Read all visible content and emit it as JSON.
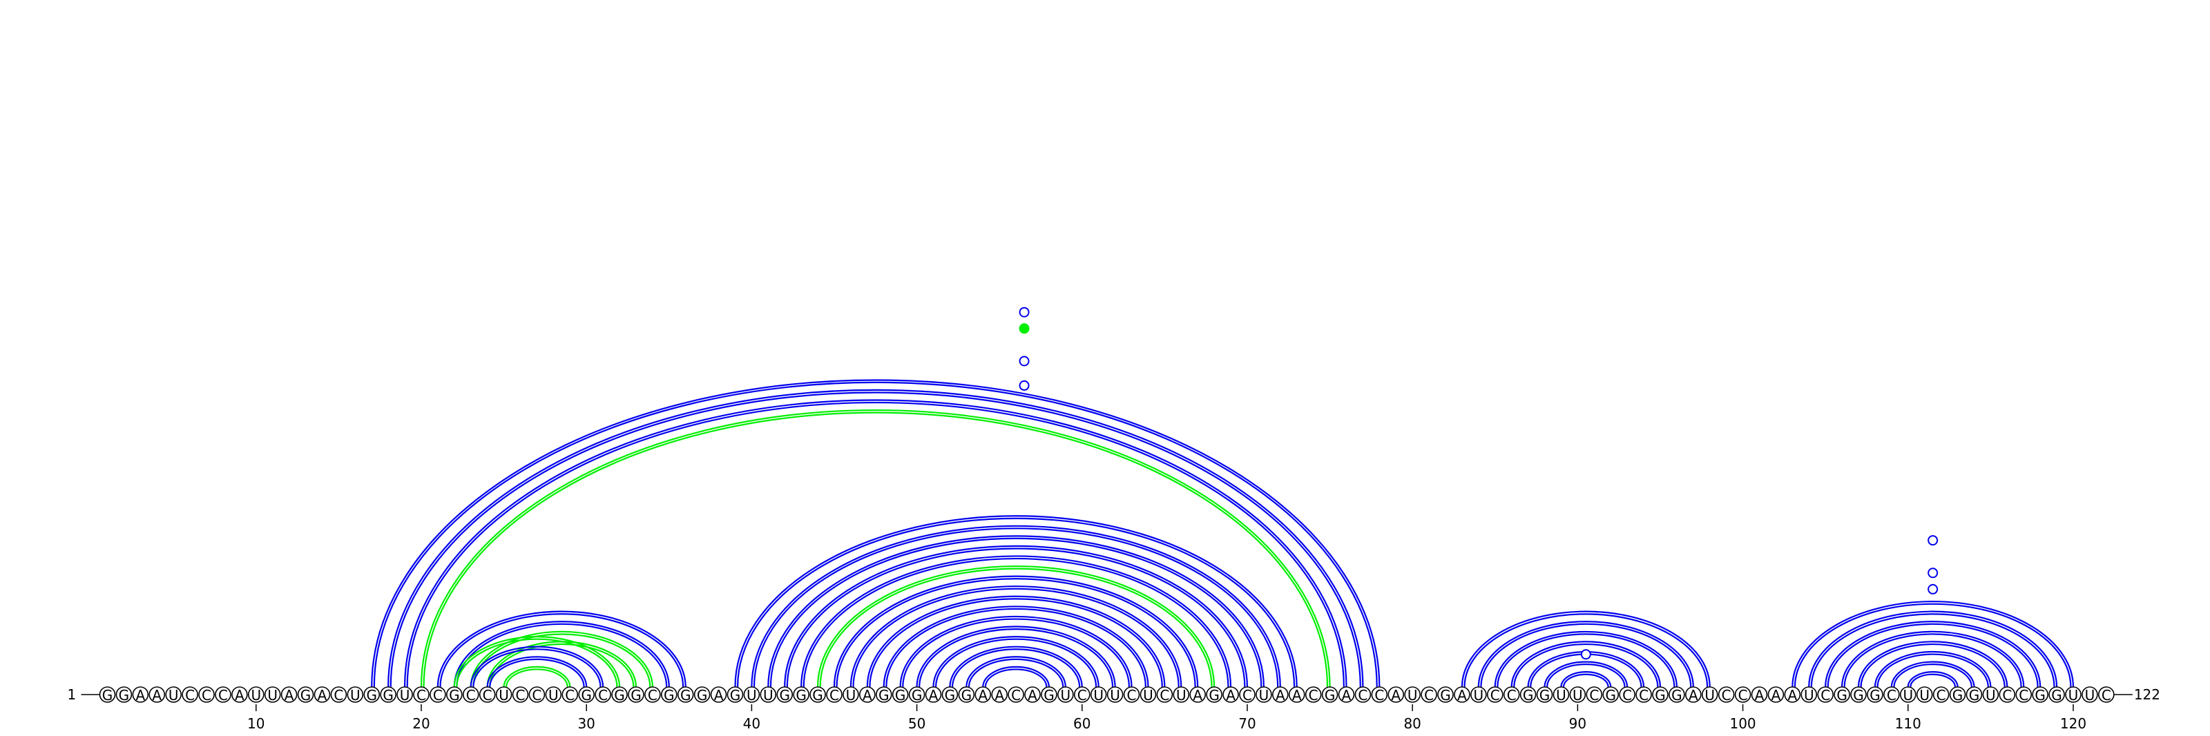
{
  "sequence": {
    "start_label": "1",
    "end_label": "122",
    "residues": "GGAAUCCCAUUAGACUGGUCCGCCUCCUCGCGGCGGGAGUUGGGCUAGGGAGGAACAGUCUUCUCUAGACUAACGACCAUCGAUCCGGUUCGCCGGAUCCAAAUCGGGCUUCGGUCCGGUUC",
    "tick_positions": [
      10,
      20,
      30,
      40,
      50,
      60,
      70,
      80,
      90,
      100,
      110,
      120
    ]
  },
  "colors": {
    "primary": "#0000ee",
    "secondary": "#00ee00",
    "outline": "#000000"
  },
  "chart_data": {
    "type": "arc",
    "x_range": [
      1,
      122
    ],
    "arcs": [
      {
        "i": 17,
        "j": 78,
        "color": "primary"
      },
      {
        "i": 18,
        "j": 77,
        "color": "primary"
      },
      {
        "i": 19,
        "j": 76,
        "color": "primary"
      },
      {
        "i": 20,
        "j": 75,
        "color": "secondary"
      },
      {
        "i": 21,
        "j": 36,
        "color": "primary"
      },
      {
        "i": 22,
        "j": 35,
        "color": "primary"
      },
      {
        "i": 23,
        "j": 34,
        "color": "secondary"
      },
      {
        "i": 24,
        "j": 33,
        "color": "secondary"
      },
      {
        "i": 22,
        "j": 32,
        "color": "secondary"
      },
      {
        "i": 23,
        "j": 31,
        "color": "primary"
      },
      {
        "i": 24,
        "j": 30,
        "color": "primary"
      },
      {
        "i": 25,
        "j": 29,
        "color": "secondary"
      },
      {
        "i": 39,
        "j": 73,
        "color": "primary"
      },
      {
        "i": 40,
        "j": 72,
        "color": "primary"
      },
      {
        "i": 41,
        "j": 71,
        "color": "primary"
      },
      {
        "i": 42,
        "j": 70,
        "color": "primary"
      },
      {
        "i": 43,
        "j": 69,
        "color": "primary"
      },
      {
        "i": 44,
        "j": 68,
        "color": "secondary"
      },
      {
        "i": 45,
        "j": 67,
        "color": "primary"
      },
      {
        "i": 46,
        "j": 66,
        "color": "primary"
      },
      {
        "i": 47,
        "j": 65,
        "color": "primary"
      },
      {
        "i": 48,
        "j": 64,
        "color": "primary"
      },
      {
        "i": 49,
        "j": 63,
        "color": "primary"
      },
      {
        "i": 50,
        "j": 62,
        "color": "primary"
      },
      {
        "i": 51,
        "j": 61,
        "color": "primary"
      },
      {
        "i": 52,
        "j": 60,
        "color": "primary"
      },
      {
        "i": 53,
        "j": 59,
        "color": "primary"
      },
      {
        "i": 54,
        "j": 58,
        "color": "primary"
      },
      {
        "i": 83,
        "j": 98,
        "color": "primary"
      },
      {
        "i": 84,
        "j": 97,
        "color": "primary"
      },
      {
        "i": 85,
        "j": 96,
        "color": "primary"
      },
      {
        "i": 86,
        "j": 95,
        "color": "primary"
      },
      {
        "i": 87,
        "j": 94,
        "color": "primary"
      },
      {
        "i": 88,
        "j": 93,
        "color": "primary"
      },
      {
        "i": 89,
        "j": 92,
        "color": "primary"
      },
      {
        "i": 103,
        "j": 120,
        "color": "primary"
      },
      {
        "i": 104,
        "j": 119,
        "color": "primary"
      },
      {
        "i": 105,
        "j": 118,
        "color": "primary"
      },
      {
        "i": 106,
        "j": 117,
        "color": "primary"
      },
      {
        "i": 107,
        "j": 116,
        "color": "primary"
      },
      {
        "i": 108,
        "j": 115,
        "color": "primary"
      },
      {
        "i": 109,
        "j": 114,
        "color": "primary"
      },
      {
        "i": 110,
        "j": 113,
        "color": "primary"
      }
    ],
    "markers": [
      {
        "x": 56.5,
        "level": 46,
        "color": "primary"
      },
      {
        "x": 56.5,
        "level": 44,
        "color": "secondary"
      },
      {
        "x": 56.5,
        "level": 40,
        "color": "primary"
      },
      {
        "x": 56.5,
        "level": 37,
        "color": "primary"
      },
      {
        "x": 90.5,
        "level": 4,
        "color": "primary"
      },
      {
        "x": 111.5,
        "level": 18,
        "color": "primary"
      },
      {
        "x": 111.5,
        "level": 14,
        "color": "primary"
      },
      {
        "x": 111.5,
        "level": 12,
        "color": "primary"
      }
    ]
  }
}
